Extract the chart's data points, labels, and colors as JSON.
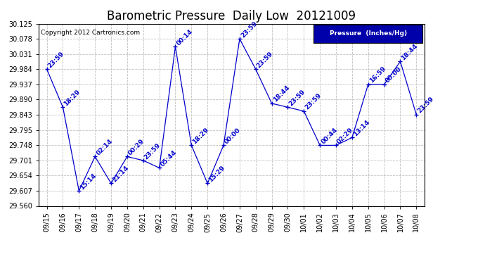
{
  "title": "Barometric Pressure  Daily Low  20121009",
  "ylabel": "Pressure  (Inches/Hg)",
  "copyright": "Copyright 2012 Cartronics.com",
  "line_color": "#0000cc",
  "bg_color": "#ffffff",
  "grid_color": "#c0c0c0",
  "ylim": [
    29.56,
    30.125
  ],
  "yticks": [
    29.56,
    29.607,
    29.654,
    29.701,
    29.748,
    29.795,
    29.843,
    29.89,
    29.937,
    29.984,
    30.031,
    30.078,
    30.125
  ],
  "dates": [
    "09/15",
    "09/16",
    "09/17",
    "09/18",
    "09/19",
    "09/20",
    "09/21",
    "09/22",
    "09/23",
    "09/24",
    "09/25",
    "09/26",
    "09/27",
    "09/28",
    "09/29",
    "09/30",
    "10/01",
    "10/02",
    "10/03",
    "10/04",
    "10/05",
    "10/06",
    "10/07",
    "10/08"
  ],
  "values": [
    29.984,
    29.866,
    29.607,
    29.713,
    29.63,
    29.713,
    29.701,
    29.678,
    30.054,
    29.748,
    29.63,
    29.748,
    30.078,
    29.984,
    29.878,
    29.866,
    29.854,
    29.748,
    29.748,
    29.772,
    29.937,
    29.937,
    30.008,
    29.843
  ],
  "times": [
    "23:59",
    "18:29",
    "15:14",
    "02:14",
    "21:14",
    "00:29",
    "23:59",
    "05:44",
    "00:14",
    "18:29",
    "15:29",
    "00:00",
    "23:59",
    "23:59",
    "18:44",
    "23:59",
    "23:59",
    "00:44",
    "02:29",
    "13:14",
    "16:59",
    "00:00",
    "18:44",
    "23:59"
  ],
  "legend_bg": "#0000aa",
  "legend_text_color": "#ffffff",
  "title_fontsize": 12,
  "tick_fontsize": 7,
  "annot_fontsize": 6.5,
  "copyright_fontsize": 6.5
}
